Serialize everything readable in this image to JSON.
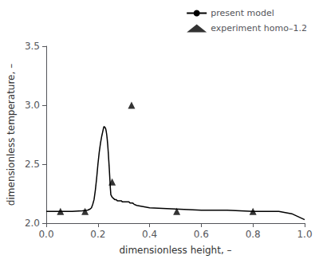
{
  "chart_data": {
    "type": "line",
    "xlabel": "dimensionless height, –",
    "ylabel": "dimensionless temperature, –",
    "xlim": [
      0.0,
      1.0
    ],
    "ylim": [
      2.0,
      3.5
    ],
    "xticks": [
      {
        "value": 0.0,
        "label": "0.0"
      },
      0.2,
      0.4,
      0.6,
      0.8,
      {
        "value": 1.0,
        "label": "1.0"
      }
    ],
    "yticks": [
      {
        "value": 2.0,
        "label": "2.0"
      },
      2.5,
      {
        "value": 3.0,
        "label": "3.0"
      },
      3.5
    ],
    "grid": false,
    "legend": "upper right",
    "series": [
      {
        "name": "present model",
        "type": "line",
        "color": "#000000",
        "line_style": "solid",
        "x": [
          0.0,
          0.05,
          0.1,
          0.14,
          0.16,
          0.17,
          0.175,
          0.18,
          0.185,
          0.19,
          0.195,
          0.2,
          0.205,
          0.21,
          0.215,
          0.218,
          0.22,
          0.222,
          0.224,
          0.226,
          0.228,
          0.23,
          0.232,
          0.234,
          0.236,
          0.238,
          0.24,
          0.242,
          0.244,
          0.246,
          0.248,
          0.25,
          0.255,
          0.26,
          0.265,
          0.27,
          0.275,
          0.28,
          0.285,
          0.29,
          0.295,
          0.3,
          0.305,
          0.31,
          0.315,
          0.32,
          0.325,
          0.33,
          0.335,
          0.34,
          0.35,
          0.4,
          0.5,
          0.6,
          0.7,
          0.8,
          0.9,
          0.95,
          1.0
        ],
        "values": [
          2.1,
          2.1,
          2.1,
          2.105,
          2.11,
          2.12,
          2.13,
          2.16,
          2.2,
          2.28,
          2.38,
          2.5,
          2.6,
          2.68,
          2.74,
          2.77,
          2.79,
          2.81,
          2.82,
          2.82,
          2.81,
          2.8,
          2.78,
          2.75,
          2.71,
          2.66,
          2.6,
          2.53,
          2.46,
          2.38,
          2.3,
          2.24,
          2.22,
          2.21,
          2.2,
          2.2,
          2.19,
          2.19,
          2.19,
          2.19,
          2.18,
          2.18,
          2.18,
          2.18,
          2.18,
          2.18,
          2.17,
          2.17,
          2.17,
          2.16,
          2.15,
          2.13,
          2.12,
          2.11,
          2.11,
          2.1,
          2.1,
          2.08,
          2.03
        ]
      },
      {
        "name": "experiment homo–1.2",
        "type": "scatter",
        "color": "#000000",
        "marker": "triangle",
        "x": [
          0.055,
          0.15,
          0.255,
          0.33,
          0.505,
          0.8
        ],
        "values": [
          2.1,
          2.1,
          2.35,
          3.0,
          2.1,
          2.1
        ]
      }
    ]
  }
}
